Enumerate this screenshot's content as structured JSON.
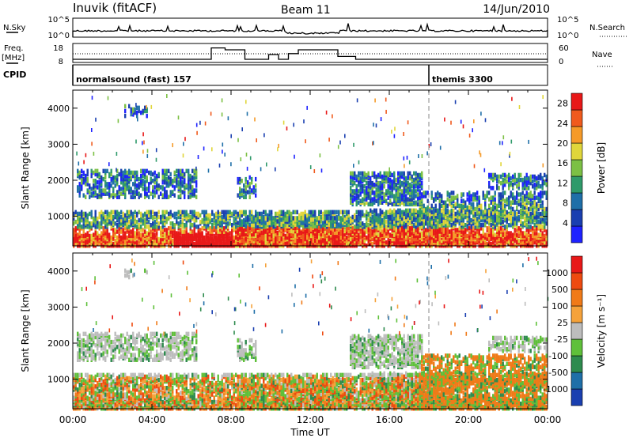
{
  "header": {
    "station": "Inuvik (fitACF)",
    "beam": "Beam 11",
    "date": "14/Jun/2010"
  },
  "strips": {
    "nsky_label": "N.Sky",
    "nsky_ticks": [
      "10^5",
      "10^0"
    ],
    "nsearch_label": "N.Search",
    "nsearch_ticks": [
      "10^5",
      "10^0"
    ],
    "freq_label": "Freq.",
    "freq_unit": "[MHz]",
    "freq_ticks": [
      "18",
      "8"
    ],
    "nave_label": "Nave",
    "nave_ticks": [
      "60",
      "0"
    ],
    "cpid_label": "CPID",
    "cpid_segments": [
      {
        "name": "normalsound (fast) 157",
        "start_hour": 0
      },
      {
        "name": "themis 3300",
        "start_hour": 18
      }
    ],
    "freq_steps": [
      {
        "from": 0,
        "to": 7.0,
        "value": 10.5
      },
      {
        "from": 7.0,
        "to": 7.7,
        "value": 16.5
      },
      {
        "from": 7.7,
        "to": 8.7,
        "value": 15.5
      },
      {
        "from": 8.7,
        "to": 9.9,
        "value": 10.5
      },
      {
        "from": 9.9,
        "to": 10.4,
        "value": 13.0
      },
      {
        "from": 10.4,
        "to": 10.9,
        "value": 10.5
      },
      {
        "from": 10.9,
        "to": 11.4,
        "value": 13.5
      },
      {
        "from": 11.4,
        "to": 13.4,
        "value": 15.5
      },
      {
        "from": 13.4,
        "to": 14.3,
        "value": 12.0
      },
      {
        "from": 14.3,
        "to": 24,
        "value": 10.5
      }
    ]
  },
  "chart_data": [
    {
      "type": "heatmap",
      "name": "Power",
      "ylabel": "Slant Range [km]",
      "yticks": [
        1000,
        2000,
        3000,
        4000
      ],
      "ylim": [
        180,
        4500
      ],
      "xlim": [
        0,
        24
      ],
      "colorbar_label": "Power [dB]",
      "colorbar_ticks": [
        4,
        8,
        12,
        16,
        20,
        24,
        28
      ],
      "colorbar_range": [
        0,
        30
      ],
      "colors": [
        "#1e22ff",
        "#1a3fb0",
        "#1f6fa8",
        "#2f9a6a",
        "#7cc044",
        "#e0d63a",
        "#f59a28",
        "#f05a1d",
        "#e81818"
      ]
    },
    {
      "type": "heatmap",
      "name": "Velocity",
      "ylabel": "Slant Range [km]",
      "yticks": [
        1000,
        2000,
        3000,
        4000
      ],
      "ylim": [
        180,
        4500
      ],
      "xlim": [
        0,
        24
      ],
      "xticks": [
        "00:00",
        "04:00",
        "08:00",
        "12:00",
        "16:00",
        "20:00",
        "00:00"
      ],
      "xlabel": "Time UT",
      "colorbar_label": "Velocity [m s⁻¹]",
      "colorbar_ticks": [
        "1000",
        "500",
        "100",
        "25",
        "-25",
        "-100",
        "-500",
        "-1000"
      ],
      "colors": [
        "#1a3fb0",
        "#1f6fa8",
        "#2e8b4e",
        "#5fc03a",
        "#bdbdbd",
        "#f5a23a",
        "#f07a18",
        "#ee4a10",
        "#e81818"
      ]
    }
  ]
}
